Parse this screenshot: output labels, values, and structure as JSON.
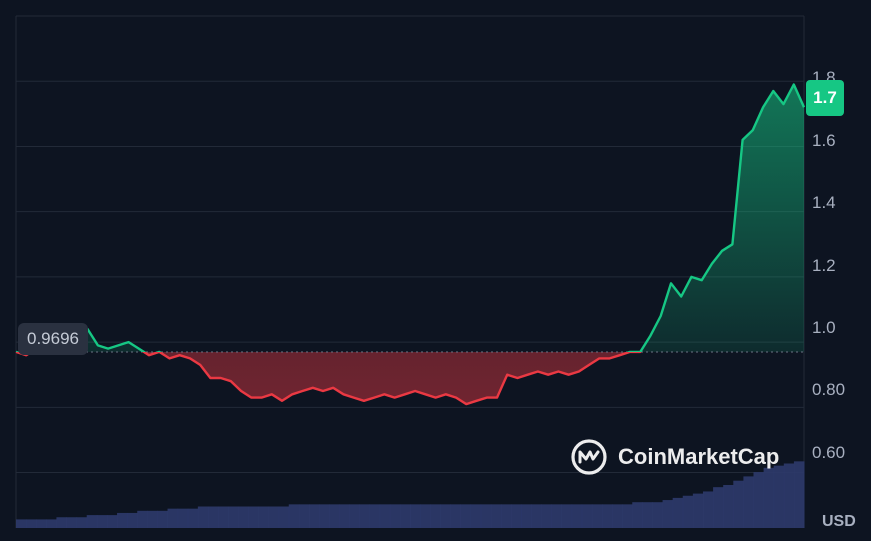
{
  "chart_data": {
    "type": "line",
    "currency_label": "USD",
    "y_ticks": [
      "1.8",
      "1.6",
      "1.4",
      "1.2",
      "1.0",
      "0.80",
      "0.60"
    ],
    "ylim": [
      0.43,
      2.0
    ],
    "reference_value": 0.9696,
    "reference_label": "0.9696",
    "last_value_label": "1.7",
    "grid": true,
    "colors": {
      "above": "#16c784",
      "below": "#ea3943",
      "volume": "#2e3a6b",
      "background": "#0d1421",
      "grid": "#222a38"
    },
    "price_series": [
      0.97,
      0.96,
      0.98,
      0.99,
      1.02,
      1.03,
      1.02,
      1.04,
      0.99,
      0.98,
      0.99,
      1.0,
      0.98,
      0.96,
      0.97,
      0.95,
      0.96,
      0.95,
      0.93,
      0.89,
      0.89,
      0.88,
      0.85,
      0.83,
      0.83,
      0.84,
      0.82,
      0.84,
      0.85,
      0.86,
      0.85,
      0.86,
      0.84,
      0.83,
      0.82,
      0.83,
      0.84,
      0.83,
      0.84,
      0.85,
      0.84,
      0.83,
      0.84,
      0.83,
      0.81,
      0.82,
      0.83,
      0.83,
      0.9,
      0.89,
      0.9,
      0.91,
      0.9,
      0.91,
      0.9,
      0.91,
      0.93,
      0.95,
      0.95,
      0.96,
      0.97,
      0.97,
      1.02,
      1.08,
      1.18,
      1.14,
      1.2,
      1.19,
      1.24,
      1.28,
      1.3,
      1.62,
      1.65,
      1.72,
      1.77,
      1.73,
      1.79,
      1.72
    ],
    "volume_series": [
      0.04,
      0.04,
      0.04,
      0.04,
      0.05,
      0.05,
      0.05,
      0.06,
      0.06,
      0.06,
      0.07,
      0.07,
      0.08,
      0.08,
      0.08,
      0.09,
      0.09,
      0.09,
      0.1,
      0.1,
      0.1,
      0.1,
      0.1,
      0.1,
      0.1,
      0.1,
      0.1,
      0.11,
      0.11,
      0.11,
      0.11,
      0.11,
      0.11,
      0.11,
      0.11,
      0.11,
      0.11,
      0.11,
      0.11,
      0.11,
      0.11,
      0.11,
      0.11,
      0.11,
      0.11,
      0.11,
      0.11,
      0.11,
      0.11,
      0.11,
      0.11,
      0.11,
      0.11,
      0.11,
      0.11,
      0.11,
      0.11,
      0.11,
      0.11,
      0.11,
      0.11,
      0.12,
      0.12,
      0.12,
      0.13,
      0.14,
      0.15,
      0.16,
      0.17,
      0.19,
      0.2,
      0.22,
      0.24,
      0.26,
      0.28,
      0.29,
      0.3,
      0.31
    ]
  },
  "watermark": {
    "brand": "CoinMarketCap",
    "icon": "coinmarketcap-logo-icon"
  }
}
